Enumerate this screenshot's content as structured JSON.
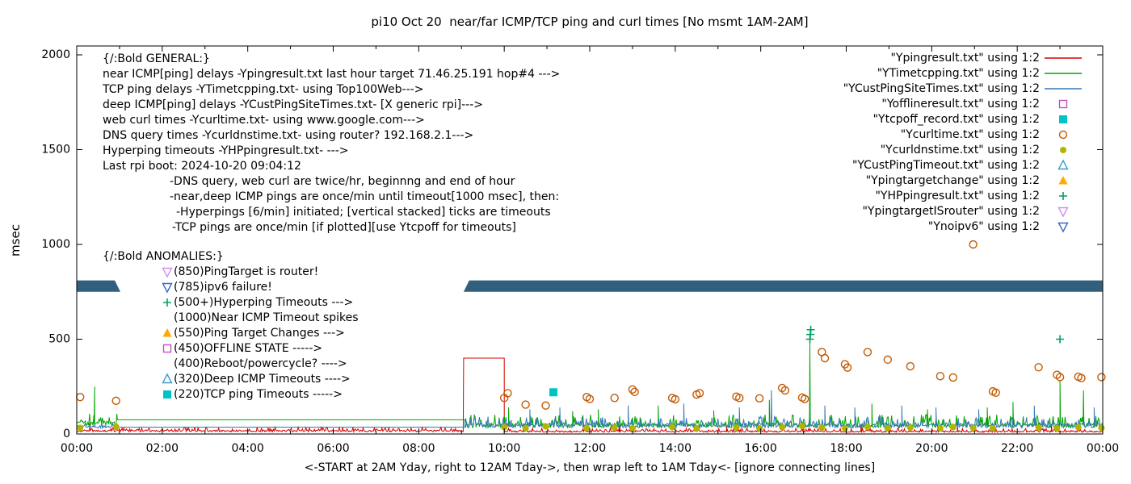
{
  "title": "pi10 Oct 20  near/far ICMP/TCP ping and curl times [No msmt 1AM-2AM]",
  "axes": {
    "ylabel": "msec",
    "xlabel": "<-START at 2AM Yday, right to 12AM Tday->, then wrap left to 1AM Tday<- [ignore connecting lines]",
    "x_tick_labels": [
      "00:00",
      "02:00",
      "04:00",
      "06:00",
      "08:00",
      "10:00",
      "12:00",
      "14:00",
      "16:00",
      "18:00",
      "20:00",
      "22:00",
      "00:00"
    ],
    "y_tick_values": [
      0,
      500,
      1000,
      1500,
      2000
    ]
  },
  "colors": {
    "red": "#d40000",
    "green": "#00a400",
    "blue": "#3377bb",
    "magenta": "#c44fc4",
    "cyan": "#00c3c3",
    "orange": "#c35a00",
    "olive": "#b3b300",
    "ltblue": "#3d9ad1",
    "amber": "#ffaa00",
    "hp": "#00a060",
    "violet": "#cf8ef0",
    "blue3": "#3a66c8",
    "band": "#31607f",
    "text": "#000000"
  },
  "chart_data": {
    "type": "line",
    "x_unit": "hours",
    "xlim": [
      0,
      24
    ],
    "ylim": [
      0,
      2000
    ],
    "grid": false,
    "legend_position": "top-right",
    "series_lines": [
      {
        "name": "Ypingresult",
        "color": "red",
        "segments": [
          {
            "kind": "noisy",
            "from": 0,
            "to": 9.05,
            "base": 16,
            "amp": 9
          },
          {
            "kind": "flat",
            "from": 9.05,
            "to": 10.0,
            "value": 400
          },
          {
            "kind": "noisy",
            "from": 10.0,
            "to": 24,
            "base": 13,
            "amp": 8
          }
        ],
        "spikes": [
          [
            0.3,
            55
          ],
          [
            10.45,
            50
          ],
          [
            12.7,
            48
          ],
          [
            15.2,
            45
          ],
          [
            18.35,
            52
          ],
          [
            20.6,
            46
          ],
          [
            22.8,
            50
          ]
        ]
      },
      {
        "name": "YTimetcpping",
        "color": "green",
        "segments": [
          {
            "kind": "noisy",
            "from": 0,
            "to": 0.95,
            "base": 55,
            "amp": 28
          },
          {
            "kind": "flat",
            "from": 0.95,
            "to": 9.08,
            "value": 75
          },
          {
            "kind": "noisy",
            "from": 9.08,
            "to": 24,
            "base": 46,
            "amp": 26
          }
        ],
        "spikes": [
          [
            0.42,
            250
          ],
          [
            10.1,
            140
          ],
          [
            11.6,
            120
          ],
          [
            12.2,
            130
          ],
          [
            13.6,
            150
          ],
          [
            14.9,
            125
          ],
          [
            16.2,
            180
          ],
          [
            17.15,
            480
          ],
          [
            18.6,
            160
          ],
          [
            19.9,
            130
          ],
          [
            21.3,
            140
          ],
          [
            21.9,
            170
          ],
          [
            23.0,
            280
          ],
          [
            23.55,
            230
          ]
        ]
      },
      {
        "name": "YCustPingSiteTimes",
        "color": "blue",
        "segments": [
          {
            "kind": "noisy",
            "from": 0,
            "to": 0.95,
            "base": 38,
            "amp": 14
          },
          {
            "kind": "flat",
            "from": 0.95,
            "to": 9.08,
            "value": 36
          },
          {
            "kind": "noisy",
            "from": 9.08,
            "to": 24,
            "base": 44,
            "amp": 22
          }
        ],
        "spikes": [
          [
            10.6,
            130
          ],
          [
            11.3,
            140
          ],
          [
            12.9,
            150
          ],
          [
            14.2,
            160
          ],
          [
            15.5,
            140
          ],
          [
            16.25,
            230
          ],
          [
            17.5,
            150
          ],
          [
            18.2,
            140
          ],
          [
            19.3,
            150
          ],
          [
            20.1,
            140
          ],
          [
            21.1,
            130
          ],
          [
            22.4,
            150
          ],
          [
            23.8,
            140
          ]
        ]
      }
    ],
    "series_points": [
      {
        "name": "Ycurltime",
        "marker": "circle-open",
        "color": "orange",
        "data": [
          [
            0.08,
            195
          ],
          [
            0.92,
            175
          ],
          [
            10.0,
            190
          ],
          [
            10.08,
            215
          ],
          [
            10.5,
            155
          ],
          [
            10.97,
            150
          ],
          [
            11.93,
            195
          ],
          [
            12.0,
            185
          ],
          [
            12.58,
            190
          ],
          [
            13.0,
            235
          ],
          [
            13.05,
            222
          ],
          [
            13.93,
            190
          ],
          [
            14.0,
            183
          ],
          [
            14.5,
            208
          ],
          [
            14.57,
            215
          ],
          [
            15.43,
            197
          ],
          [
            15.5,
            190
          ],
          [
            15.97,
            188
          ],
          [
            16.5,
            243
          ],
          [
            16.57,
            230
          ],
          [
            16.97,
            192
          ],
          [
            17.03,
            185
          ],
          [
            17.43,
            432
          ],
          [
            17.5,
            400
          ],
          [
            17.97,
            368
          ],
          [
            18.03,
            350
          ],
          [
            18.5,
            432
          ],
          [
            18.97,
            392
          ],
          [
            19.5,
            357
          ],
          [
            20.2,
            305
          ],
          [
            20.5,
            298
          ],
          [
            20.97,
            1000
          ],
          [
            21.43,
            225
          ],
          [
            21.5,
            218
          ],
          [
            22.5,
            352
          ],
          [
            22.93,
            312
          ],
          [
            23.0,
            300
          ],
          [
            23.43,
            302
          ],
          [
            23.5,
            295
          ],
          [
            23.97,
            300
          ]
        ]
      },
      {
        "name": "Ycurldnstime",
        "marker": "circle-filled",
        "color": "olive",
        "data": [
          [
            0.08,
            32
          ],
          [
            0.92,
            38
          ],
          [
            10.0,
            36
          ],
          [
            10.5,
            30
          ],
          [
            10.97,
            40
          ],
          [
            11.93,
            32
          ],
          [
            12.58,
            34
          ],
          [
            13.0,
            30
          ],
          [
            13.93,
            36
          ],
          [
            14.5,
            30
          ],
          [
            15.43,
            34
          ],
          [
            15.97,
            30
          ],
          [
            16.5,
            36
          ],
          [
            16.97,
            42
          ],
          [
            17.43,
            34
          ],
          [
            17.97,
            30
          ],
          [
            18.5,
            36
          ],
          [
            18.97,
            30
          ],
          [
            19.5,
            34
          ],
          [
            20.2,
            30
          ],
          [
            20.5,
            36
          ],
          [
            20.97,
            32
          ],
          [
            21.43,
            30
          ],
          [
            22.5,
            34
          ],
          [
            22.93,
            30
          ],
          [
            23.43,
            36
          ],
          [
            23.97,
            32
          ]
        ]
      },
      {
        "name": "Ytcpoff_record",
        "marker": "square-filled",
        "color": "cyan",
        "data": [
          [
            11.15,
            220
          ]
        ]
      },
      {
        "name": "YHPpingresult",
        "marker": "plus",
        "color": "hp",
        "data": [
          [
            17.15,
            500
          ],
          [
            17.16,
            525
          ],
          [
            17.17,
            550
          ],
          [
            23.0,
            500
          ]
        ]
      }
    ],
    "state_band": {
      "color": "band",
      "y_bottom": 750,
      "y_top": 810,
      "slant_hours": 0.13,
      "segments": [
        [
          0,
          1.02
        ],
        [
          9.05,
          24
        ]
      ]
    }
  },
  "legend": [
    {
      "label": "\"Ypingresult.txt\" using 1:2",
      "sample": "line",
      "color": "red"
    },
    {
      "label": "\"YTimetcpping.txt\" using 1:2",
      "sample": "line",
      "color": "green"
    },
    {
      "label": "\"YCustPingSiteTimes.txt\" using 1:2",
      "sample": "line",
      "color": "blue"
    },
    {
      "label": "\"Yofflineresult.txt\" using 1:2",
      "sample": "square-open",
      "color": "magenta"
    },
    {
      "label": "\"Ytcpoff_record.txt\" using 1:2",
      "sample": "square-filled",
      "color": "cyan"
    },
    {
      "label": "\"Ycurltime.txt\" using 1:2",
      "sample": "circle-open",
      "color": "orange"
    },
    {
      "label": "\"Ycurldnstime.txt\" using 1:2",
      "sample": "circle-filled",
      "color": "olive"
    },
    {
      "label": "\"YCustPingTimeout.txt\" using 1:2",
      "sample": "triangle-up-open",
      "color": "ltblue"
    },
    {
      "label": "\"Ypingtargetchange\" using 1:2",
      "sample": "triangle-up-filled",
      "color": "amber"
    },
    {
      "label": "\"YHPpingresult.txt\" using 1:2",
      "sample": "plus",
      "color": "hp"
    },
    {
      "label": "\"YpingtargetISrouter\" using 1:2",
      "sample": "triangle-down-open",
      "color": "violet"
    },
    {
      "label": "\"Ynoipv6\" using 1:2",
      "sample": "triangle-down-open",
      "color": "blue3"
    }
  ],
  "annotations": {
    "general": [
      {
        "text": "{/:Bold GENERAL:}",
        "indent": 0
      },
      {
        "text": "near ICMP[ping] delays -Ypingresult.txt last hour target 71.46.25.191 hop#4 --->",
        "indent": 0
      },
      {
        "text": "TCP ping delays -YTimetcpping.txt- using Top100Web--->",
        "indent": 0
      },
      {
        "text": "deep ICMP[ping] delays -YCustPingSiteTimes.txt- [X generic rpi]--->",
        "indent": 0
      },
      {
        "text": "web curl times -Ycurltime.txt- using www.google.com--->",
        "indent": 0
      },
      {
        "text": "DNS query times -Ycurldnstime.txt- using router? 192.168.2.1--->",
        "indent": 0
      },
      {
        "text": "Hyperping timeouts -YHPpingresult.txt- --->",
        "indent": 0
      },
      {
        "text": "Last rpi boot: 2024-10-20 09:04:12",
        "indent": 0
      },
      {
        "text": "-DNS query, web curl are twice/hr, beginnng and end of hour",
        "indent": 83
      },
      {
        "text": "-near,deep ICMP pings are once/min until timeout[1000 msec], then:",
        "indent": 83
      },
      {
        "text": "-Hyperpings [6/min] initiated; [vertical stacked] ticks are timeouts",
        "indent": 91
      },
      {
        "text": "-TCP pings are once/min [if plotted][use Ytcpoff for timeouts]",
        "indent": 86
      }
    ],
    "anomalies_header": "{/:Bold ANOMALIES:}",
    "anomalies": [
      {
        "marker": "triangle-down-open",
        "color": "violet",
        "text": "(850)PingTarget is router!"
      },
      {
        "marker": "triangle-down-open",
        "color": "blue3",
        "text": "(785)ipv6 failure!"
      },
      {
        "marker": "plus",
        "color": "hp",
        "text": "(500+)Hyperping Timeouts --->"
      },
      {
        "marker": "none",
        "color": "text",
        "text": "(1000)Near ICMP Timeout spikes"
      },
      {
        "marker": "triangle-up-filled",
        "color": "amber",
        "text": "(550)Ping Target Changes --->"
      },
      {
        "marker": "square-open",
        "color": "magenta",
        "text": "(450)OFFLINE STATE ----->"
      },
      {
        "marker": "none",
        "color": "text",
        "text": "(400)Reboot/powercycle? ---->"
      },
      {
        "marker": "triangle-up-open",
        "color": "ltblue",
        "text": "(320)Deep ICMP Timeouts ---->"
      },
      {
        "marker": "square-filled",
        "color": "cyan",
        "text": "(220)TCP ping Timeouts ----->"
      }
    ]
  }
}
